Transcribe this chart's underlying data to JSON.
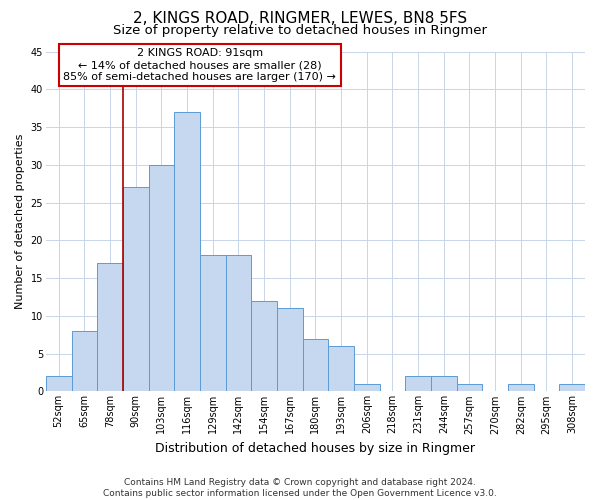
{
  "title": "2, KINGS ROAD, RINGMER, LEWES, BN8 5FS",
  "subtitle": "Size of property relative to detached houses in Ringmer",
  "xlabel": "Distribution of detached houses by size in Ringmer",
  "ylabel": "Number of detached properties",
  "bin_labels": [
    "52sqm",
    "65sqm",
    "78sqm",
    "90sqm",
    "103sqm",
    "116sqm",
    "129sqm",
    "142sqm",
    "154sqm",
    "167sqm",
    "180sqm",
    "193sqm",
    "206sqm",
    "218sqm",
    "231sqm",
    "244sqm",
    "257sqm",
    "270sqm",
    "282sqm",
    "295sqm",
    "308sqm"
  ],
  "bar_values": [
    2,
    8,
    17,
    27,
    30,
    37,
    18,
    18,
    12,
    11,
    7,
    6,
    1,
    0,
    2,
    2,
    1,
    0,
    1,
    0,
    1
  ],
  "bar_color": "#c5d8f0",
  "bar_edge_color": "#5b9bd5",
  "highlight_line_color": "#aa0000",
  "annotation_line1": "2 KINGS ROAD: 91sqm",
  "annotation_line2": "← 14% of detached houses are smaller (28)",
  "annotation_line3": "85% of semi-detached houses are larger (170) →",
  "annotation_box_color": "#ffffff",
  "annotation_box_edge_color": "#cc0000",
  "ylim": [
    0,
    45
  ],
  "yticks": [
    0,
    5,
    10,
    15,
    20,
    25,
    30,
    35,
    40,
    45
  ],
  "background_color": "#ffffff",
  "grid_color": "#c8d4e8",
  "footnote": "Contains HM Land Registry data © Crown copyright and database right 2024.\nContains public sector information licensed under the Open Government Licence v3.0.",
  "title_fontsize": 11,
  "subtitle_fontsize": 9.5,
  "xlabel_fontsize": 9,
  "ylabel_fontsize": 8,
  "tick_fontsize": 7,
  "annotation_fontsize": 8,
  "footnote_fontsize": 6.5
}
